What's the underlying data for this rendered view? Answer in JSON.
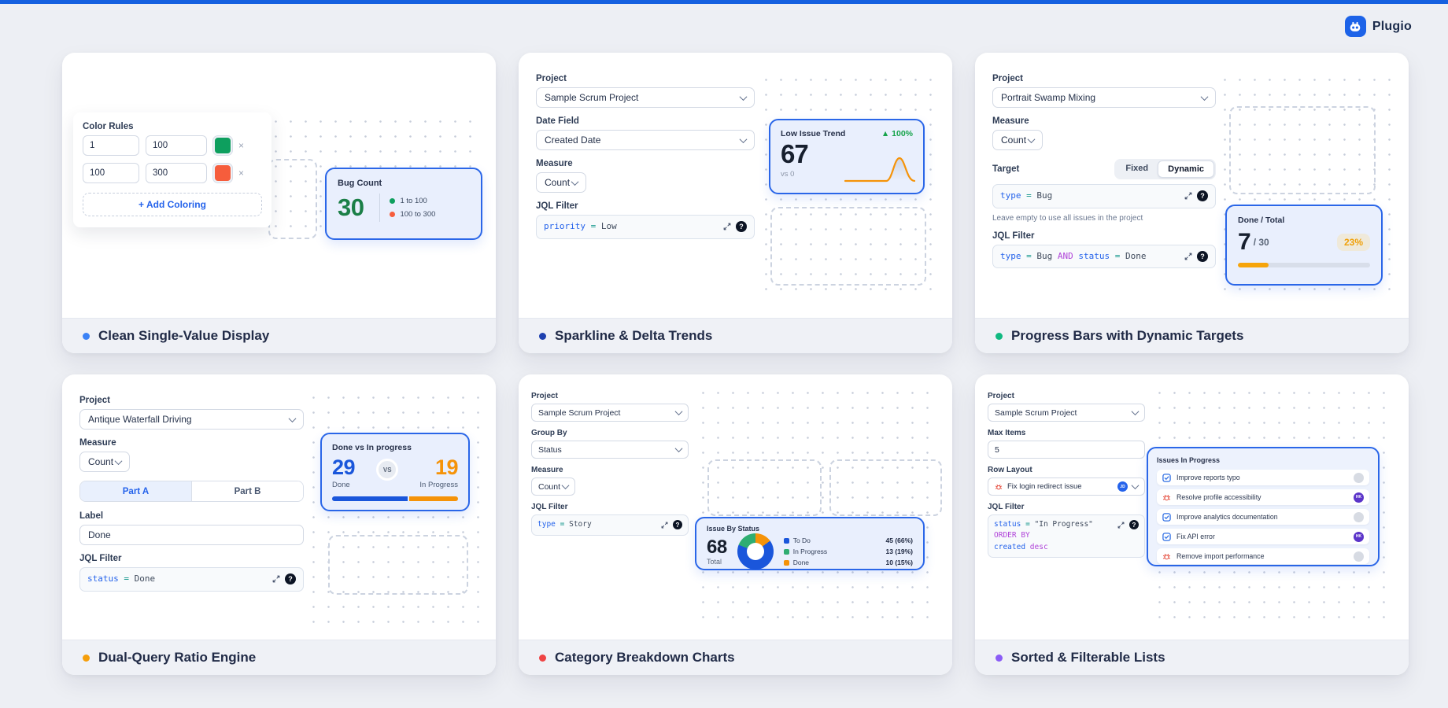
{
  "brand": {
    "name": "Plugio"
  },
  "icons": {
    "help": "?",
    "close": "×"
  },
  "colors": {
    "topbar": "#1560e0",
    "accent_blue": "#2563eb",
    "widget_border": "#2a66e8",
    "green": "#0e9f5e",
    "orange": "#f65d3c",
    "amber": "#f59309",
    "jql_field": "#2563eb",
    "jql_operator": "#0d9488",
    "jql_keyword": "#b044d9",
    "jql_value": "#3f4a5c"
  },
  "cards": {
    "c1": {
      "footer": {
        "title": "Clean Single-Value Display",
        "dot_color": "#3b82f6"
      },
      "form": {
        "color_rules_label": "Color Rules",
        "rules": [
          {
            "from": "1",
            "to": "100",
            "color": "#0e9f5e"
          },
          {
            "from": "100",
            "to": "300",
            "color": "#f65d3c"
          }
        ],
        "add_button": "+ Add Coloring"
      },
      "widget": {
        "title": "Bug Count",
        "value": "30",
        "value_color": "#1b7f47",
        "legend": [
          {
            "label": "1 to 100",
            "color": "#0e9f5e"
          },
          {
            "label": "100 to 300",
            "color": "#f65d3c"
          }
        ]
      }
    },
    "c2": {
      "footer": {
        "title": "Sparkline & Delta Trends",
        "dot_color": "#1e40af"
      },
      "form": {
        "project_label": "Project",
        "project_value": "Sample Scrum Project",
        "date_label": "Date Field",
        "date_value": "Created Date",
        "measure_label": "Measure",
        "measure_value": "Count",
        "jql_label": "JQL Filter",
        "jql": {
          "field": "priority",
          "op": "=",
          "value": "Low"
        }
      },
      "widget": {
        "title": "Low Issue Trend",
        "delta": "▲ 100%",
        "value": "67",
        "compare": "vs 0",
        "chart_data": {
          "type": "line",
          "values": [
            0,
            0,
            0,
            0,
            0,
            67,
            0
          ],
          "color": "#f59309"
        }
      }
    },
    "c3": {
      "footer": {
        "title": "Progress Bars with Dynamic Targets",
        "dot_color": "#10b981"
      },
      "form": {
        "project_label": "Project",
        "project_value": "Portrait Swamp Mixing",
        "measure_label": "Measure",
        "measure_value": "Count",
        "target_label": "Target",
        "toggle": {
          "fixed": "Fixed",
          "dynamic": "Dynamic",
          "active": "Dynamic"
        },
        "target_jql": {
          "field": "type",
          "op": "=",
          "value": "Bug"
        },
        "helper": "Leave empty to use all issues in the project",
        "jql_label": "JQL Filter",
        "jql": {
          "f1": "type",
          "op1": "=",
          "v1": "Bug",
          "kw": "AND",
          "f2": "status",
          "op2": "=",
          "v2": "Done"
        }
      },
      "widget": {
        "title": "Done / Total",
        "value": "7",
        "total": "/ 30",
        "percent": "23%",
        "progress_pct": 23
      }
    },
    "c4": {
      "footer": {
        "title": "Dual-Query Ratio Engine",
        "dot_color": "#f59e0b"
      },
      "form": {
        "project_label": "Project",
        "project_value": "Antique Waterfall Driving",
        "measure_label": "Measure",
        "measure_value": "Count",
        "tabs": {
          "a": "Part A",
          "b": "Part B",
          "active": "Part A"
        },
        "label_label": "Label",
        "label_value": "Done",
        "jql_label": "JQL Filter",
        "jql": {
          "field": "status",
          "op": "=",
          "value": "Done"
        }
      },
      "widget": {
        "title": "Done vs In progress",
        "left_value": "29",
        "left_label": "Done",
        "vs": "VS",
        "right_value": "19",
        "right_label": "In Progress",
        "left_pct": 60
      }
    },
    "c5": {
      "footer": {
        "title": "Category Breakdown Charts",
        "dot_color": "#ef4444"
      },
      "form": {
        "project_label": "Project",
        "project_value": "Sample Scrum Project",
        "group_label": "Group By",
        "group_value": "Status",
        "measure_label": "Measure",
        "measure_value": "Count",
        "jql_label": "JQL Filter",
        "jql": {
          "field": "type",
          "op": "=",
          "value": "Story"
        }
      },
      "widget": {
        "title": "Issue By Status",
        "value": "68",
        "value_label": "Total",
        "chart_data": {
          "type": "pie",
          "categories": [
            "To Do",
            "In Progress",
            "Done"
          ],
          "values": [
            45,
            13,
            10
          ],
          "total": 68,
          "colors": [
            "#1a56db",
            "#2ead72",
            "#f59309"
          ],
          "slices": [
            {
              "color": "#f59309",
              "pct": 15
            },
            {
              "color": "#1a56db",
              "pct": 66
            },
            {
              "color": "#2ead72",
              "pct": 19
            }
          ]
        },
        "legend": [
          {
            "label": "To Do",
            "value": "45 (66%)",
            "color": "#1a56db"
          },
          {
            "label": "In Progress",
            "value": "13 (19%)",
            "color": "#2ead72"
          },
          {
            "label": "Done",
            "value": "10 (15%)",
            "color": "#f59309"
          }
        ]
      }
    },
    "c6": {
      "footer": {
        "title": "Sorted & Filterable Lists",
        "dot_color": "#8b5cf6"
      },
      "form": {
        "project_label": "Project",
        "project_value": "Sample Scrum Project",
        "max_label": "Max Items",
        "max_value": "5",
        "row_label": "Row Layout",
        "row_value": "Fix login redirect issue",
        "row_avatar": "JD",
        "jql_label": "JQL Filter",
        "jql_line1": {
          "field": "status",
          "op": "=",
          "value": "\"In Progress\"",
          "kw": "ORDER BY"
        },
        "jql_line2": {
          "field": "created",
          "kw": "desc"
        }
      },
      "widget": {
        "title": "Issues In Progress",
        "items": [
          {
            "type": "task",
            "label": "Improve reports typo",
            "avatar": ""
          },
          {
            "type": "bug",
            "label": "Resolve profile accessibility",
            "avatar": "HK"
          },
          {
            "type": "task",
            "label": "Improve analytics documentation",
            "avatar": ""
          },
          {
            "type": "task",
            "label": "Fix API error",
            "avatar": "HK"
          },
          {
            "type": "bug",
            "label": "Remove import performance",
            "avatar": ""
          }
        ]
      }
    }
  }
}
